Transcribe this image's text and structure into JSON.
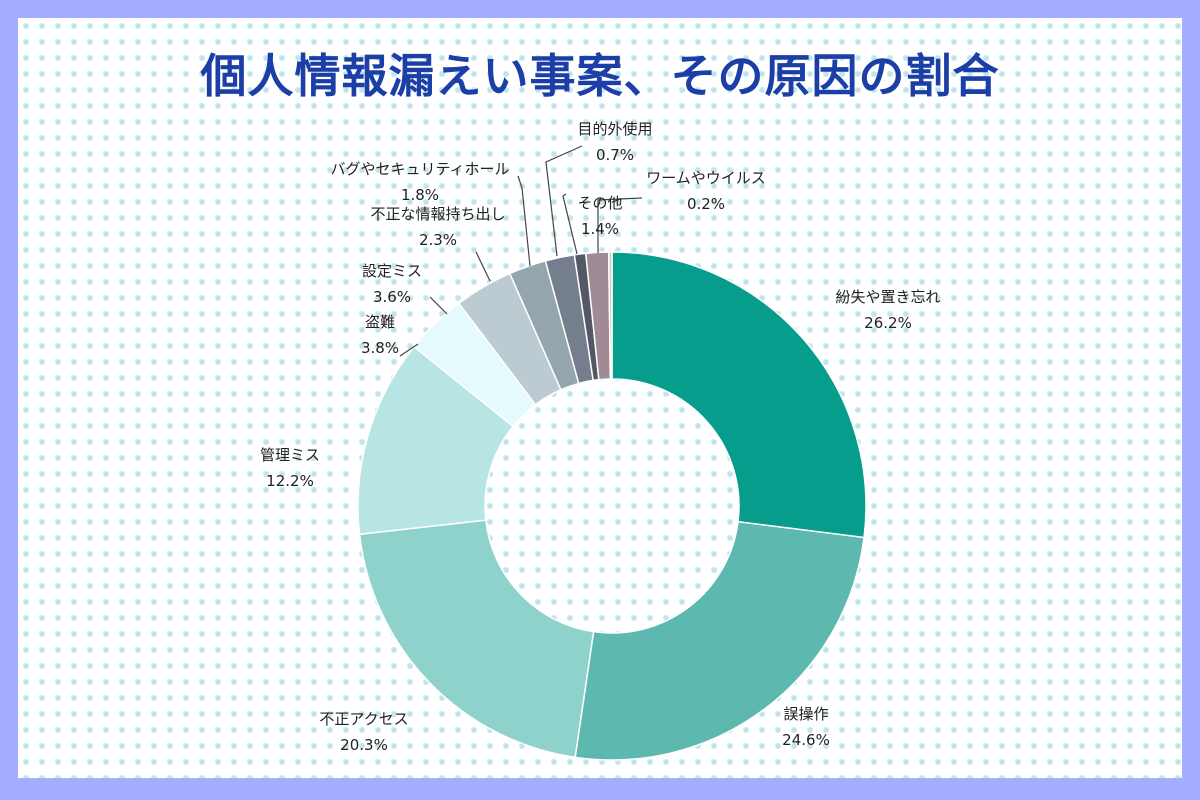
{
  "title": "個人情報漏えい事案、その原因の割合",
  "chart_data": {
    "type": "pie",
    "donut": true,
    "title": "個人情報漏えい事案、その原因の割合",
    "slices": [
      {
        "label": "紛失や置き忘れ",
        "value": 26.2,
        "display": "26.2%",
        "color": "#079d8c"
      },
      {
        "label": "誤操作",
        "value": 24.6,
        "display": "24.6%",
        "color": "#5db8b0"
      },
      {
        "label": "不正アクセス",
        "value": 20.3,
        "display": "20.3%",
        "color": "#8fd1cb"
      },
      {
        "label": "管理ミス",
        "value": 12.2,
        "display": "12.2%",
        "color": "#b6e5e3"
      },
      {
        "label": "盗難",
        "value": 3.8,
        "display": "3.8%",
        "color": "#e4fafc"
      },
      {
        "label": "設定ミス",
        "value": 3.6,
        "display": "3.6%",
        "color": "#bccbd2"
      },
      {
        "label": "不正な情報持ち出し",
        "value": 2.3,
        "display": "2.3%",
        "color": "#95a5ae"
      },
      {
        "label": "バグやセキュリティホール",
        "value": 1.8,
        "display": "1.8%",
        "color": "#757e8c"
      },
      {
        "label": "目的外使用",
        "value": 0.7,
        "display": "0.7%",
        "color": "#545866"
      },
      {
        "label": "その他",
        "value": 1.4,
        "display": "1.4%",
        "color": "#a08a95"
      },
      {
        "label": "ワームやウイルス",
        "value": 0.2,
        "display": "0.2%",
        "color": "#d9c6c8"
      }
    ]
  }
}
